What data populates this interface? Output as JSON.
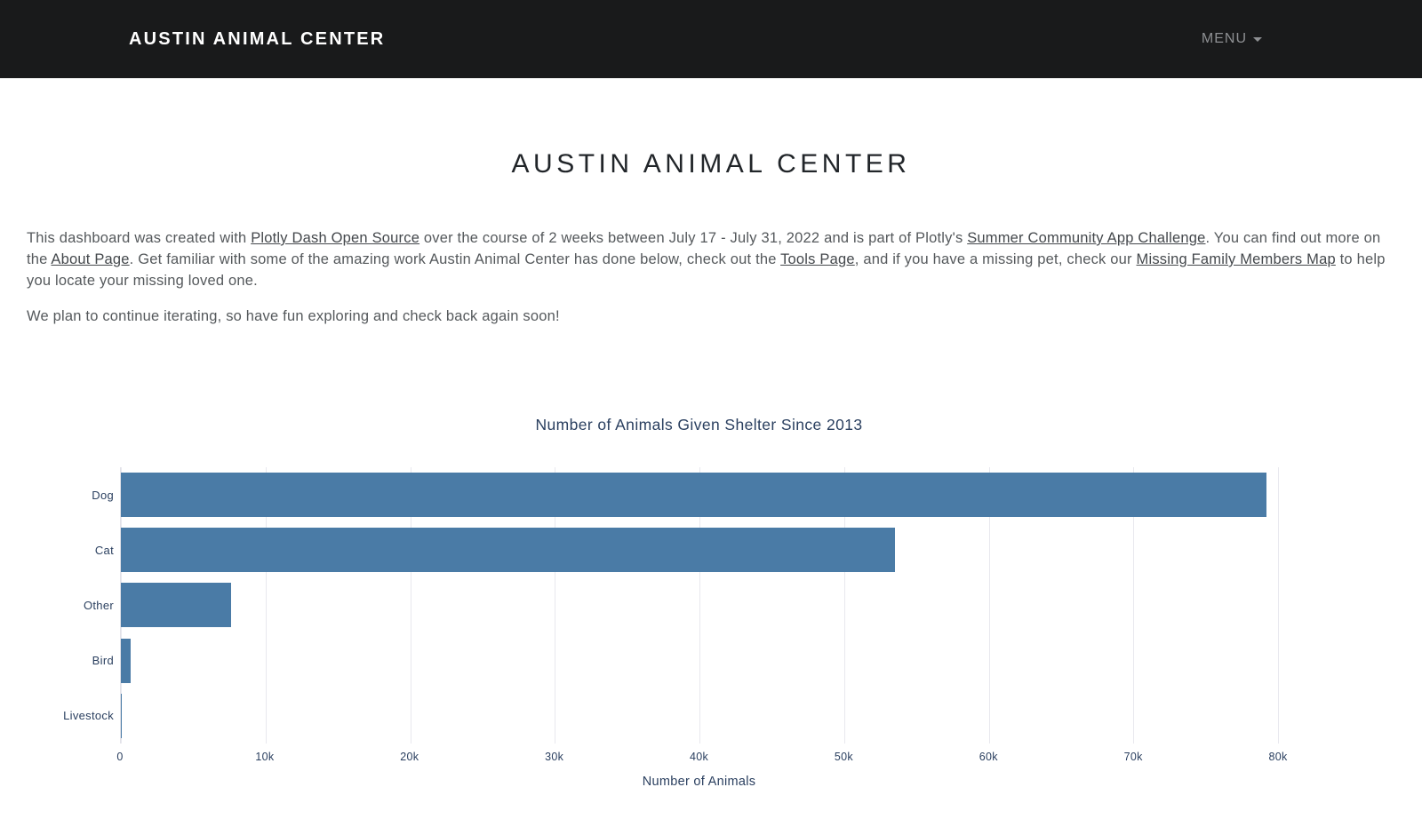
{
  "navbar": {
    "brand": "AUSTIN ANIMAL CENTER",
    "menu_label": "MENU"
  },
  "header": {
    "title": "AUSTIN ANIMAL CENTER"
  },
  "intro": {
    "paragraph1_segments": [
      {
        "text": "This dashboard was created with ",
        "link": false
      },
      {
        "text": "Plotly Dash Open Source",
        "link": true,
        "name": "plotly-dash-open-source-link"
      },
      {
        "text": " over the course of 2 weeks between July 17 - July 31, 2022 and is part of Plotly's ",
        "link": false
      },
      {
        "text": "Summer Community App Challenge",
        "link": true,
        "name": "summer-community-app-challenge-link"
      },
      {
        "text": ". You can find out more on the ",
        "link": false
      },
      {
        "text": "About Page",
        "link": true,
        "name": "about-page-link"
      },
      {
        "text": ". Get familiar with some of the amazing work Austin Animal Center has done below, check out the ",
        "link": false
      },
      {
        "text": "Tools Page",
        "link": true,
        "name": "tools-page-link"
      },
      {
        "text": ", and if you have a missing pet, check our ",
        "link": false
      },
      {
        "text": "Missing Family Members Map",
        "link": true,
        "name": "missing-family-members-map-link"
      },
      {
        "text": " to help you locate your missing loved one.",
        "link": false
      }
    ],
    "paragraph2": "We plan to continue iterating, so have fun exploring and check back again soon!"
  },
  "chart_data": {
    "type": "bar",
    "orientation": "horizontal",
    "title": "Number of Animals Given Shelter Since 2013",
    "categories": [
      "Dog",
      "Cat",
      "Other",
      "Bird",
      "Livestock"
    ],
    "values": [
      79200,
      53500,
      7600,
      680,
      25
    ],
    "xlabel": "Number of Animals",
    "ylabel": "",
    "xlim": [
      0,
      80000
    ],
    "xticks": [
      {
        "value": 0,
        "label": "0"
      },
      {
        "value": 10000,
        "label": "10k"
      },
      {
        "value": 20000,
        "label": "20k"
      },
      {
        "value": 30000,
        "label": "30k"
      },
      {
        "value": 40000,
        "label": "40k"
      },
      {
        "value": 50000,
        "label": "50k"
      },
      {
        "value": 60000,
        "label": "60k"
      },
      {
        "value": 70000,
        "label": "70k"
      },
      {
        "value": 80000,
        "label": "80k"
      }
    ],
    "grid": true,
    "legend": false,
    "bar_color": "#4a7ba6"
  },
  "colors": {
    "navbar_bg": "#191a1b",
    "brand_text": "#ffffff",
    "menu_text": "#8e9093",
    "heading_text": "#212529",
    "body_text": "#55595c",
    "link_text": "#44484c",
    "chart_text": "#2a3f5f",
    "bar_fill": "#4a7ba6",
    "gridline": "#e8e8ee",
    "axis_line": "#e3e3e9"
  }
}
